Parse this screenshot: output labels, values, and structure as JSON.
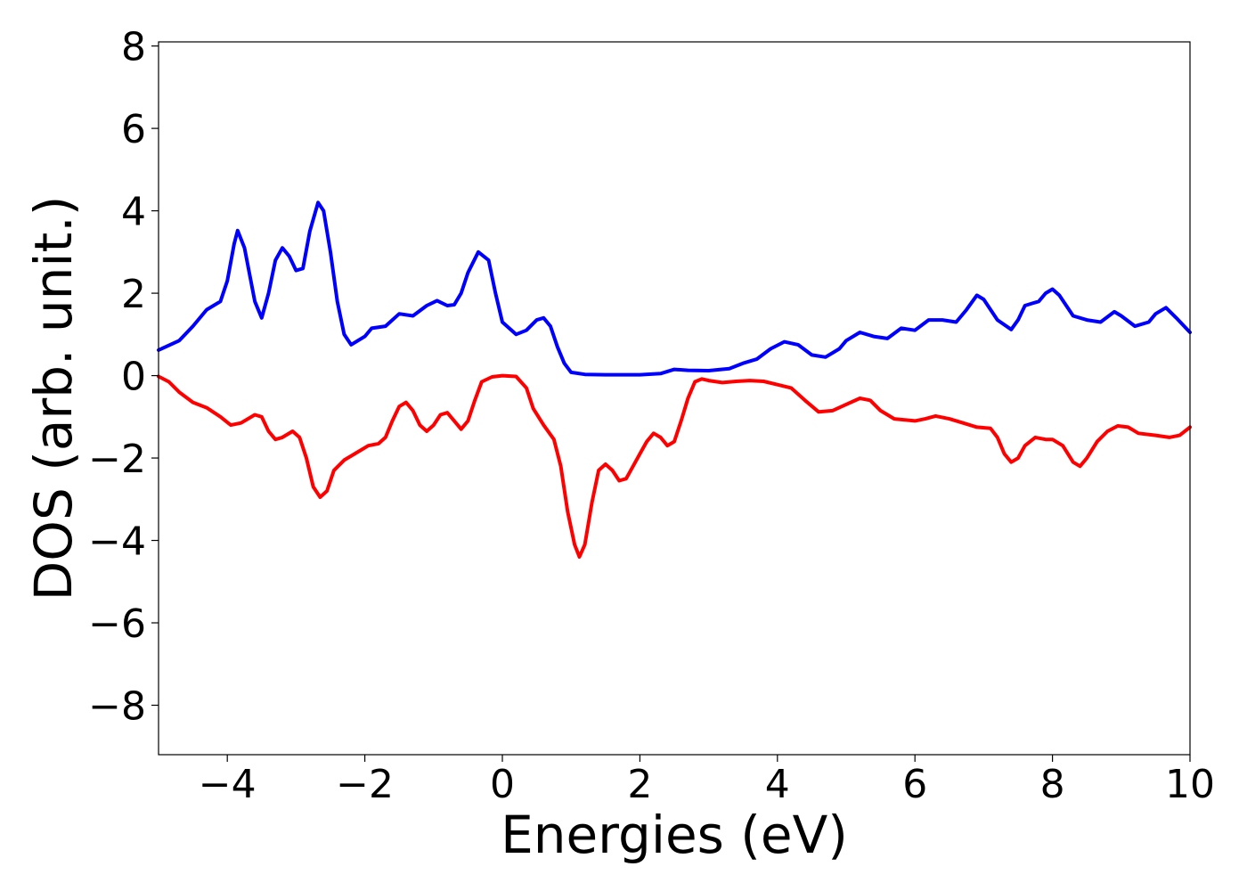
{
  "chart_data": {
    "type": "line",
    "title": "",
    "xlabel": "Energies (eV)",
    "ylabel": "DOS (arb. unit.)",
    "xlim": [
      -5,
      10
    ],
    "ylim": [
      -9.2,
      8.1
    ],
    "grid": false,
    "legend": "none",
    "xticks": [
      -4,
      -2,
      0,
      2,
      4,
      6,
      8,
      10
    ],
    "xtick_labels": [
      "−4",
      "−2",
      "0",
      "2",
      "4",
      "6",
      "8",
      "10"
    ],
    "yticks": [
      -8,
      -6,
      -4,
      -2,
      0,
      2,
      4,
      6,
      8
    ],
    "ytick_labels": [
      "−8",
      "−6",
      "−4",
      "−2",
      "0",
      "2",
      "4",
      "6",
      "8"
    ],
    "series": [
      {
        "color": "#0000ff",
        "points": [
          [
            -5.0,
            0.62
          ],
          [
            -4.7,
            0.85
          ],
          [
            -4.5,
            1.2
          ],
          [
            -4.3,
            1.6
          ],
          [
            -4.1,
            1.8
          ],
          [
            -4.0,
            2.3
          ],
          [
            -3.9,
            3.2
          ],
          [
            -3.85,
            3.52
          ],
          [
            -3.75,
            3.1
          ],
          [
            -3.6,
            1.8
          ],
          [
            -3.5,
            1.4
          ],
          [
            -3.4,
            2.0
          ],
          [
            -3.3,
            2.8
          ],
          [
            -3.2,
            3.1
          ],
          [
            -3.1,
            2.9
          ],
          [
            -3.0,
            2.55
          ],
          [
            -2.9,
            2.6
          ],
          [
            -2.8,
            3.5
          ],
          [
            -2.68,
            4.2
          ],
          [
            -2.6,
            4.0
          ],
          [
            -2.5,
            3.0
          ],
          [
            -2.4,
            1.8
          ],
          [
            -2.3,
            1.0
          ],
          [
            -2.2,
            0.75
          ],
          [
            -2.0,
            0.95
          ],
          [
            -1.9,
            1.15
          ],
          [
            -1.7,
            1.2
          ],
          [
            -1.5,
            1.5
          ],
          [
            -1.3,
            1.45
          ],
          [
            -1.1,
            1.7
          ],
          [
            -0.95,
            1.82
          ],
          [
            -0.8,
            1.7
          ],
          [
            -0.7,
            1.72
          ],
          [
            -0.6,
            2.0
          ],
          [
            -0.5,
            2.5
          ],
          [
            -0.35,
            3.0
          ],
          [
            -0.2,
            2.8
          ],
          [
            -0.1,
            2.0
          ],
          [
            0.0,
            1.3
          ],
          [
            0.2,
            1.0
          ],
          [
            0.35,
            1.1
          ],
          [
            0.5,
            1.35
          ],
          [
            0.6,
            1.4
          ],
          [
            0.7,
            1.2
          ],
          [
            0.8,
            0.7
          ],
          [
            0.9,
            0.3
          ],
          [
            1.0,
            0.08
          ],
          [
            1.2,
            0.03
          ],
          [
            1.5,
            0.02
          ],
          [
            2.0,
            0.02
          ],
          [
            2.3,
            0.05
          ],
          [
            2.5,
            0.15
          ],
          [
            2.7,
            0.13
          ],
          [
            3.0,
            0.12
          ],
          [
            3.3,
            0.17
          ],
          [
            3.5,
            0.3
          ],
          [
            3.7,
            0.4
          ],
          [
            3.9,
            0.65
          ],
          [
            4.1,
            0.82
          ],
          [
            4.3,
            0.75
          ],
          [
            4.5,
            0.5
          ],
          [
            4.7,
            0.45
          ],
          [
            4.9,
            0.65
          ],
          [
            5.0,
            0.85
          ],
          [
            5.2,
            1.05
          ],
          [
            5.4,
            0.95
          ],
          [
            5.6,
            0.9
          ],
          [
            5.8,
            1.15
          ],
          [
            6.0,
            1.1
          ],
          [
            6.2,
            1.35
          ],
          [
            6.4,
            1.35
          ],
          [
            6.6,
            1.3
          ],
          [
            6.75,
            1.6
          ],
          [
            6.9,
            1.95
          ],
          [
            7.0,
            1.85
          ],
          [
            7.2,
            1.35
          ],
          [
            7.4,
            1.12
          ],
          [
            7.5,
            1.35
          ],
          [
            7.6,
            1.7
          ],
          [
            7.7,
            1.75
          ],
          [
            7.8,
            1.8
          ],
          [
            7.9,
            2.0
          ],
          [
            8.0,
            2.1
          ],
          [
            8.1,
            1.95
          ],
          [
            8.3,
            1.45
          ],
          [
            8.5,
            1.35
          ],
          [
            8.7,
            1.3
          ],
          [
            8.9,
            1.55
          ],
          [
            9.0,
            1.45
          ],
          [
            9.2,
            1.2
          ],
          [
            9.4,
            1.3
          ],
          [
            9.5,
            1.5
          ],
          [
            9.65,
            1.65
          ],
          [
            9.8,
            1.4
          ],
          [
            10.0,
            1.05
          ]
        ]
      },
      {
        "color": "#ff0000",
        "points": [
          [
            -5.0,
            -0.02
          ],
          [
            -4.85,
            -0.15
          ],
          [
            -4.7,
            -0.4
          ],
          [
            -4.5,
            -0.65
          ],
          [
            -4.3,
            -0.78
          ],
          [
            -4.1,
            -1.0
          ],
          [
            -3.95,
            -1.2
          ],
          [
            -3.8,
            -1.15
          ],
          [
            -3.6,
            -0.95
          ],
          [
            -3.5,
            -1.0
          ],
          [
            -3.4,
            -1.35
          ],
          [
            -3.3,
            -1.55
          ],
          [
            -3.2,
            -1.5
          ],
          [
            -3.05,
            -1.35
          ],
          [
            -2.95,
            -1.5
          ],
          [
            -2.85,
            -2.0
          ],
          [
            -2.75,
            -2.7
          ],
          [
            -2.65,
            -2.95
          ],
          [
            -2.55,
            -2.8
          ],
          [
            -2.45,
            -2.3
          ],
          [
            -2.3,
            -2.05
          ],
          [
            -2.1,
            -1.85
          ],
          [
            -1.95,
            -1.7
          ],
          [
            -1.8,
            -1.65
          ],
          [
            -1.7,
            -1.5
          ],
          [
            -1.6,
            -1.1
          ],
          [
            -1.5,
            -0.75
          ],
          [
            -1.4,
            -0.65
          ],
          [
            -1.3,
            -0.85
          ],
          [
            -1.2,
            -1.2
          ],
          [
            -1.1,
            -1.35
          ],
          [
            -1.0,
            -1.2
          ],
          [
            -0.9,
            -0.95
          ],
          [
            -0.8,
            -0.9
          ],
          [
            -0.7,
            -1.1
          ],
          [
            -0.6,
            -1.3
          ],
          [
            -0.5,
            -1.1
          ],
          [
            -0.4,
            -0.6
          ],
          [
            -0.3,
            -0.15
          ],
          [
            -0.15,
            -0.03
          ],
          [
            0.0,
            0.0
          ],
          [
            0.2,
            -0.02
          ],
          [
            0.35,
            -0.3
          ],
          [
            0.45,
            -0.8
          ],
          [
            0.6,
            -1.2
          ],
          [
            0.75,
            -1.55
          ],
          [
            0.85,
            -2.2
          ],
          [
            0.95,
            -3.3
          ],
          [
            1.05,
            -4.1
          ],
          [
            1.12,
            -4.4
          ],
          [
            1.2,
            -4.1
          ],
          [
            1.3,
            -3.1
          ],
          [
            1.4,
            -2.3
          ],
          [
            1.5,
            -2.15
          ],
          [
            1.6,
            -2.3
          ],
          [
            1.7,
            -2.55
          ],
          [
            1.8,
            -2.5
          ],
          [
            1.9,
            -2.2
          ],
          [
            2.0,
            -1.9
          ],
          [
            2.1,
            -1.6
          ],
          [
            2.2,
            -1.4
          ],
          [
            2.3,
            -1.5
          ],
          [
            2.4,
            -1.7
          ],
          [
            2.5,
            -1.6
          ],
          [
            2.6,
            -1.1
          ],
          [
            2.7,
            -0.55
          ],
          [
            2.8,
            -0.15
          ],
          [
            2.9,
            -0.08
          ],
          [
            3.0,
            -0.12
          ],
          [
            3.2,
            -0.17
          ],
          [
            3.4,
            -0.14
          ],
          [
            3.6,
            -0.12
          ],
          [
            3.8,
            -0.14
          ],
          [
            4.0,
            -0.22
          ],
          [
            4.2,
            -0.3
          ],
          [
            4.4,
            -0.6
          ],
          [
            4.6,
            -0.88
          ],
          [
            4.8,
            -0.85
          ],
          [
            5.0,
            -0.7
          ],
          [
            5.2,
            -0.55
          ],
          [
            5.35,
            -0.6
          ],
          [
            5.5,
            -0.85
          ],
          [
            5.7,
            -1.05
          ],
          [
            6.0,
            -1.1
          ],
          [
            6.15,
            -1.05
          ],
          [
            6.3,
            -0.98
          ],
          [
            6.5,
            -1.05
          ],
          [
            6.7,
            -1.15
          ],
          [
            6.9,
            -1.25
          ],
          [
            7.1,
            -1.28
          ],
          [
            7.2,
            -1.5
          ],
          [
            7.3,
            -1.9
          ],
          [
            7.4,
            -2.1
          ],
          [
            7.5,
            -2.0
          ],
          [
            7.6,
            -1.7
          ],
          [
            7.75,
            -1.5
          ],
          [
            7.9,
            -1.55
          ],
          [
            8.0,
            -1.55
          ],
          [
            8.15,
            -1.7
          ],
          [
            8.3,
            -2.1
          ],
          [
            8.4,
            -2.2
          ],
          [
            8.5,
            -2.0
          ],
          [
            8.65,
            -1.6
          ],
          [
            8.8,
            -1.35
          ],
          [
            8.95,
            -1.22
          ],
          [
            9.1,
            -1.25
          ],
          [
            9.25,
            -1.4
          ],
          [
            9.5,
            -1.45
          ],
          [
            9.7,
            -1.5
          ],
          [
            9.85,
            -1.45
          ],
          [
            10.0,
            -1.25
          ]
        ]
      }
    ]
  }
}
